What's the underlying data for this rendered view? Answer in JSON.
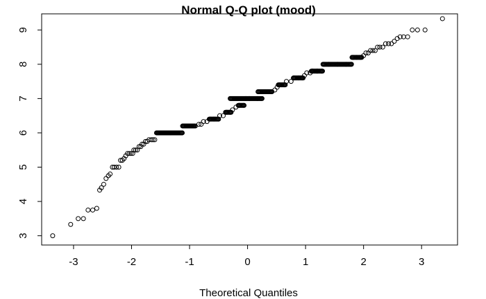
{
  "chart_data": {
    "type": "scatter",
    "title": "Normal Q-Q plot (mood)",
    "xlabel": "Theoretical Quantiles",
    "ylabel": "",
    "xlim": [
      -3.55,
      3.62
    ],
    "ylim": [
      2.73,
      9.47
    ],
    "x_ticks": [
      -3,
      -2,
      -1,
      0,
      1,
      2,
      3
    ],
    "y_ticks": [
      3,
      4,
      5,
      6,
      7,
      8,
      9
    ],
    "grid": false,
    "marker": "open-circle",
    "colors": {
      "points": "#000000",
      "axis": "#000000",
      "background": "#ffffff"
    },
    "points": [
      [
        -3.36,
        3.0
      ],
      [
        -3.05,
        3.33
      ],
      [
        -2.92,
        3.5
      ],
      [
        -2.83,
        3.5
      ],
      [
        -2.75,
        3.75
      ],
      [
        -2.67,
        3.75
      ],
      [
        -2.6,
        3.8
      ],
      [
        -2.55,
        4.33
      ],
      [
        -2.52,
        4.4
      ],
      [
        -2.48,
        4.5
      ],
      [
        -2.44,
        4.67
      ],
      [
        -2.4,
        4.75
      ],
      [
        -2.37,
        4.8
      ],
      [
        -2.33,
        5.0
      ],
      [
        -2.3,
        5.0
      ],
      [
        -2.26,
        5.0
      ],
      [
        -2.22,
        5.0
      ],
      [
        -2.19,
        5.2
      ],
      [
        -2.16,
        5.2
      ],
      [
        -2.13,
        5.25
      ],
      [
        -2.1,
        5.33
      ],
      [
        -2.07,
        5.4
      ],
      [
        -2.04,
        5.4
      ],
      [
        -2.01,
        5.4
      ],
      [
        -1.98,
        5.4
      ],
      [
        -1.96,
        5.5
      ],
      [
        -1.93,
        5.5
      ],
      [
        -1.9,
        5.5
      ],
      [
        -1.87,
        5.6
      ],
      [
        -1.84,
        5.6
      ],
      [
        -1.82,
        5.67
      ],
      [
        -1.79,
        5.67
      ],
      [
        -1.76,
        5.75
      ],
      [
        -1.73,
        5.75
      ],
      [
        -1.7,
        5.8
      ],
      [
        -1.66,
        5.8
      ],
      [
        -1.63,
        5.8
      ],
      [
        -1.6,
        5.8
      ],
      [
        -1.53,
        6.0
      ],
      [
        -1.33,
        6.0
      ],
      [
        -1.13,
        6.0
      ],
      [
        -1.1,
        6.2
      ],
      [
        -1.0,
        6.2
      ],
      [
        -0.9,
        6.2
      ],
      [
        -0.84,
        6.25
      ],
      [
        -0.8,
        6.25
      ],
      [
        -0.76,
        6.33
      ],
      [
        -0.7,
        6.33
      ],
      [
        -0.64,
        6.4
      ],
      [
        -0.58,
        6.4
      ],
      [
        -0.5,
        6.4
      ],
      [
        -0.48,
        6.5
      ],
      [
        -0.42,
        6.5
      ],
      [
        -0.36,
        6.6
      ],
      [
        -0.3,
        6.6
      ],
      [
        -0.26,
        6.67
      ],
      [
        -0.2,
        6.75
      ],
      [
        -0.14,
        6.8
      ],
      [
        -0.06,
        6.8
      ],
      [
        -0.03,
        7.0
      ],
      [
        0.03,
        7.0
      ],
      [
        0.17,
        7.0
      ],
      [
        0.25,
        7.0
      ],
      [
        0.29,
        7.2
      ],
      [
        0.35,
        7.2
      ],
      [
        0.41,
        7.2
      ],
      [
        0.47,
        7.25
      ],
      [
        0.51,
        7.33
      ],
      [
        0.55,
        7.4
      ],
      [
        0.63,
        7.4
      ],
      [
        0.67,
        7.5
      ],
      [
        0.75,
        7.5
      ],
      [
        0.8,
        7.6
      ],
      [
        0.88,
        7.6
      ],
      [
        0.94,
        7.6
      ],
      [
        0.98,
        7.67
      ],
      [
        1.02,
        7.75
      ],
      [
        1.08,
        7.75
      ],
      [
        1.12,
        7.8
      ],
      [
        1.2,
        7.8
      ],
      [
        1.28,
        7.8
      ],
      [
        1.32,
        8.0
      ],
      [
        1.4,
        8.0
      ],
      [
        1.55,
        8.0
      ],
      [
        1.7,
        8.0
      ],
      [
        1.78,
        8.0
      ],
      [
        1.82,
        8.2
      ],
      [
        1.88,
        8.2
      ],
      [
        1.94,
        8.2
      ],
      [
        2.0,
        8.25
      ],
      [
        2.04,
        8.33
      ],
      [
        2.08,
        8.33
      ],
      [
        2.12,
        8.4
      ],
      [
        2.16,
        8.4
      ],
      [
        2.2,
        8.4
      ],
      [
        2.24,
        8.5
      ],
      [
        2.28,
        8.5
      ],
      [
        2.33,
        8.5
      ],
      [
        2.38,
        8.6
      ],
      [
        2.43,
        8.6
      ],
      [
        2.48,
        8.6
      ],
      [
        2.53,
        8.67
      ],
      [
        2.58,
        8.75
      ],
      [
        2.63,
        8.8
      ],
      [
        2.69,
        8.8
      ],
      [
        2.76,
        8.8
      ],
      [
        2.84,
        9.0
      ],
      [
        2.93,
        9.0
      ],
      [
        3.06,
        9.0
      ],
      [
        3.36,
        9.33
      ]
    ],
    "bands": [
      {
        "y": 6.0,
        "x_from": -1.57,
        "x_to": -1.12
      },
      {
        "y": 6.2,
        "x_from": -1.12,
        "x_to": -0.91
      },
      {
        "y": 6.4,
        "x_from": -0.66,
        "x_to": -0.5
      },
      {
        "y": 6.6,
        "x_from": -0.38,
        "x_to": -0.28
      },
      {
        "y": 6.8,
        "x_from": -0.16,
        "x_to": -0.06
      },
      {
        "y": 7.0,
        "x_from": -0.3,
        "x_to": 0.25
      },
      {
        "y": 7.2,
        "x_from": 0.18,
        "x_to": 0.42
      },
      {
        "y": 7.4,
        "x_from": 0.53,
        "x_to": 0.65
      },
      {
        "y": 7.6,
        "x_from": 0.79,
        "x_to": 0.96
      },
      {
        "y": 7.8,
        "x_from": 1.1,
        "x_to": 1.3
      },
      {
        "y": 8.0,
        "x_from": 1.3,
        "x_to": 1.8
      },
      {
        "y": 8.2,
        "x_from": 1.8,
        "x_to": 1.97
      }
    ]
  }
}
